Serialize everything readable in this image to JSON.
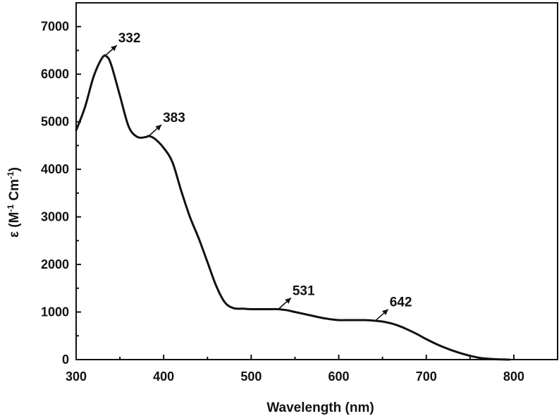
{
  "chart_data": {
    "type": "line",
    "title": "",
    "xlabel": "Wavelength (nm)",
    "ylabel": {
      "prefix": "ε (M",
      "sup1": "-1",
      "middle": " Cm",
      "sup2": "-1",
      "suffix": ")"
    },
    "xlim": [
      300,
      850
    ],
    "ylim": [
      0,
      7500
    ],
    "x_ticks": [
      300,
      400,
      500,
      600,
      700,
      800
    ],
    "y_ticks": [
      0,
      1000,
      2000,
      3000,
      4000,
      5000,
      6000,
      7000
    ],
    "grid": false,
    "legend": "none",
    "series": [
      {
        "color": "#111111",
        "x": [
          300,
          310,
          320,
          330,
          335,
          340,
          350,
          360,
          370,
          380,
          383,
          390,
          400,
          410,
          420,
          430,
          440,
          450,
          460,
          470,
          480,
          490,
          500,
          510,
          520,
          530,
          540,
          550,
          560,
          570,
          580,
          590,
          600,
          610,
          620,
          630,
          640,
          650,
          660,
          670,
          680,
          690,
          700,
          710,
          720,
          730,
          740,
          750,
          760,
          770,
          780,
          790,
          795
        ],
        "y": [
          4820,
          5300,
          5950,
          6350,
          6370,
          6200,
          5550,
          4900,
          4680,
          4680,
          4700,
          4640,
          4450,
          4150,
          3550,
          3000,
          2550,
          2050,
          1550,
          1200,
          1080,
          1070,
          1060,
          1060,
          1060,
          1060,
          1040,
          1000,
          960,
          920,
          880,
          850,
          830,
          830,
          830,
          830,
          820,
          800,
          760,
          700,
          620,
          530,
          430,
          340,
          260,
          190,
          130,
          80,
          40,
          20,
          8,
          2,
          0
        ]
      }
    ],
    "annotations": [
      {
        "label": "332",
        "x": 332,
        "y": 6370
      },
      {
        "label": "383",
        "x": 383,
        "y": 4700
      },
      {
        "label": "531",
        "x": 531,
        "y": 1060
      },
      {
        "label": "642",
        "x": 642,
        "y": 820
      }
    ]
  }
}
